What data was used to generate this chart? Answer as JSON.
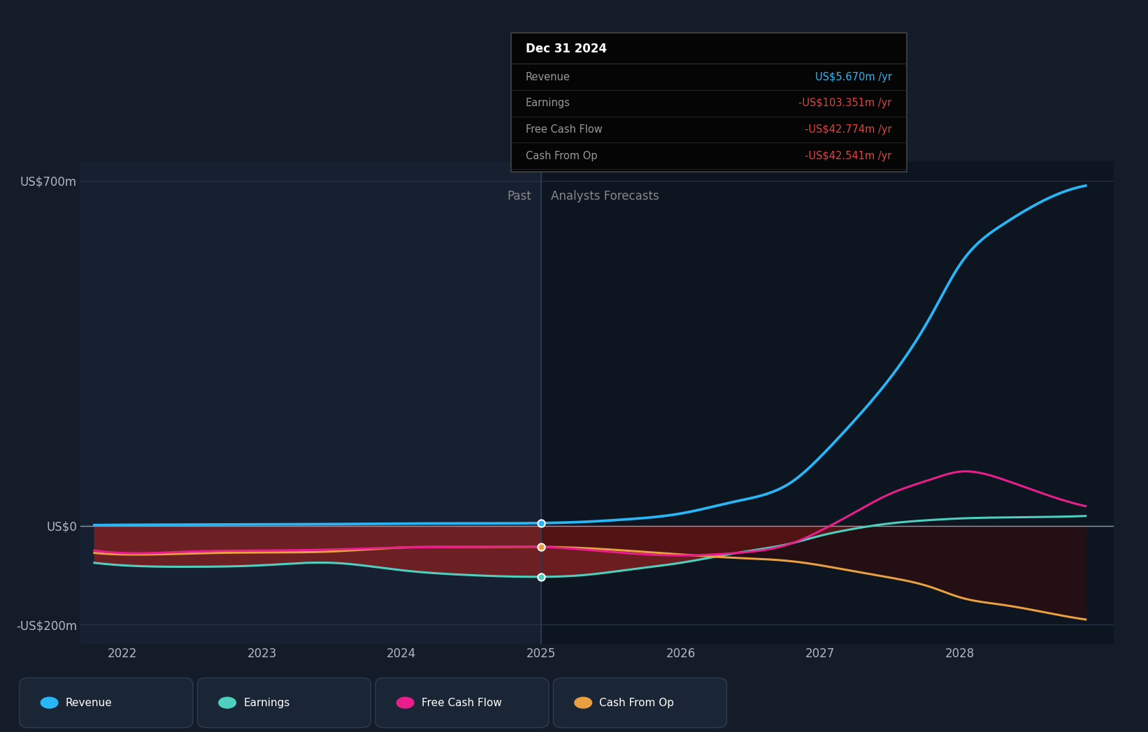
{
  "bg_color": "#131c28",
  "plot_bg_color": "#0d1520",
  "past_bg_color": "#162030",
  "grid_color": "#263545",
  "text_color": "#b0b8c0",
  "divider_x": 2025.0,
  "years_past": [
    2021.8,
    2022.0,
    2022.5,
    2023.0,
    2023.5,
    2024.0,
    2024.5,
    2025.0
  ],
  "years_forecast": [
    2025.0,
    2025.3,
    2025.6,
    2026.0,
    2026.4,
    2026.8,
    2027.0,
    2027.2,
    2027.5,
    2027.8,
    2028.0,
    2028.3,
    2028.6,
    2028.9
  ],
  "revenue_past": [
    1.5,
    2.0,
    2.5,
    3.0,
    3.5,
    4.5,
    5.0,
    5.67
  ],
  "revenue_forecast": [
    5.67,
    8.0,
    13.0,
    25.0,
    50.0,
    90.0,
    140.0,
    200.0,
    300.0,
    430.0,
    530.0,
    610.0,
    660.0,
    690.0
  ],
  "earnings_past": [
    -75.0,
    -80.0,
    -83.0,
    -80.0,
    -75.0,
    -90.0,
    -100.0,
    -103.351
  ],
  "earnings_forecast": [
    -103.351,
    -100.0,
    -90.0,
    -75.0,
    -55.0,
    -35.0,
    -20.0,
    -8.0,
    5.0,
    12.0,
    15.0,
    17.0,
    18.0,
    20.0
  ],
  "fcf_past": [
    -50.0,
    -55.0,
    -52.0,
    -50.0,
    -48.0,
    -44.0,
    -43.0,
    -42.774
  ],
  "fcf_forecast": [
    -42.774,
    -48.0,
    -55.0,
    -60.0,
    -55.0,
    -35.0,
    -10.0,
    20.0,
    65.0,
    95.0,
    110.0,
    95.0,
    65.0,
    40.0
  ],
  "cashop_past": [
    -55.0,
    -58.0,
    -56.0,
    -54.0,
    -52.0,
    -44.0,
    -43.0,
    -42.541
  ],
  "cashop_forecast": [
    -42.541,
    -45.0,
    -50.0,
    -58.0,
    -65.0,
    -72.0,
    -80.0,
    -90.0,
    -105.0,
    -125.0,
    -145.0,
    -160.0,
    -175.0,
    -190.0
  ],
  "revenue_color": "#29b6f6",
  "earnings_color": "#4dd0c0",
  "fcf_color": "#e91e8c",
  "cashop_color": "#e8a040",
  "fill_color": "#8b2020",
  "ylim": [
    -240,
    740
  ],
  "yticks": [
    -200,
    0,
    700
  ],
  "ytick_labels": [
    "-US$200m",
    "US$0",
    "US$700m"
  ],
  "xlim": [
    2021.7,
    2029.1
  ],
  "xticks": [
    2022,
    2023,
    2024,
    2025,
    2026,
    2027,
    2028
  ],
  "tooltip_title": "Dec 31 2024",
  "tooltip_revenue": "US$5.670m /yr",
  "tooltip_earnings": "-US$103.351m /yr",
  "tooltip_fcf": "-US$42.774m /yr",
  "tooltip_cashop": "-US$42.541m /yr",
  "past_label": "Past",
  "forecast_label": "Analysts Forecasts"
}
